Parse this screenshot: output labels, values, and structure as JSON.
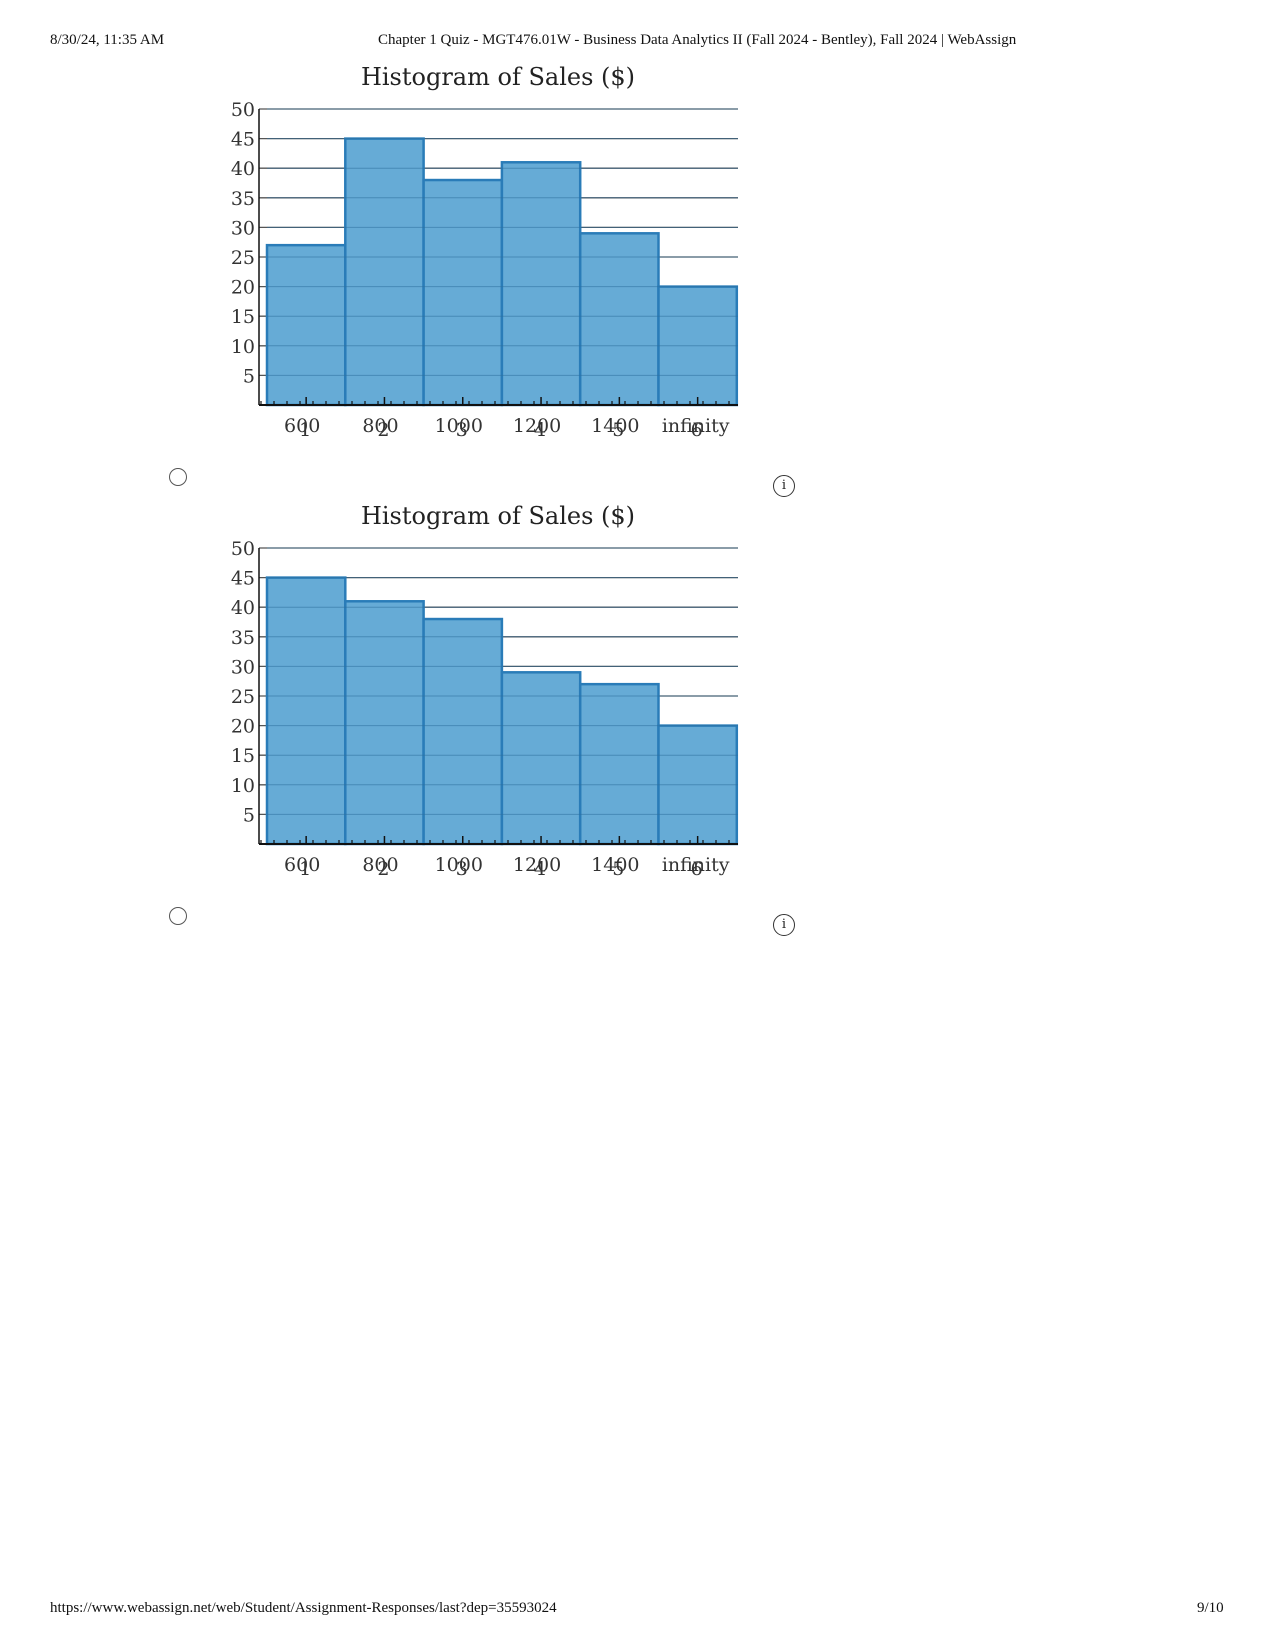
{
  "header": {
    "timestamp": "8/30/24, 11:35 AM",
    "title": "Chapter 1 Quiz - MGT476.01W - Business Data Analytics II (Fall 2024 - Bentley), Fall 2024 | WebAssign"
  },
  "footer": {
    "url": "https://www.webassign.net/web/Student/Assignment-Responses/last?dep=35593024",
    "page": "9/10"
  },
  "option_icons": {
    "radio": "radio-circle-icon",
    "info": "info-icon",
    "info_glyph": "i"
  },
  "colors": {
    "bar_fill": "#66abd6",
    "bar_stroke": "#2a7cb8",
    "grid": "#555555"
  },
  "chart_data": [
    {
      "type": "bar",
      "title": "Histogram of Sales ($)",
      "categories": [
        "600",
        "800",
        "1000",
        "1200",
        "1400",
        "infinity"
      ],
      "overlay_labels": [
        "1",
        "2",
        "3",
        "4",
        "5",
        "6"
      ],
      "values": [
        27,
        45,
        38,
        41,
        29,
        20
      ],
      "yticks": [
        5,
        10,
        15,
        20,
        25,
        30,
        35,
        40,
        45,
        50
      ],
      "ylim": [
        0,
        50
      ],
      "grid": true
    },
    {
      "type": "bar",
      "title": "Histogram of Sales ($)",
      "categories": [
        "600",
        "800",
        "1000",
        "1200",
        "1400",
        "infinity"
      ],
      "overlay_labels": [
        "1",
        "2",
        "3",
        "4",
        "5",
        "6"
      ],
      "values": [
        45,
        41,
        38,
        29,
        27,
        20
      ],
      "yticks": [
        5,
        10,
        15,
        20,
        25,
        30,
        35,
        40,
        45,
        50
      ],
      "ylim": [
        0,
        50
      ],
      "grid": true
    }
  ]
}
